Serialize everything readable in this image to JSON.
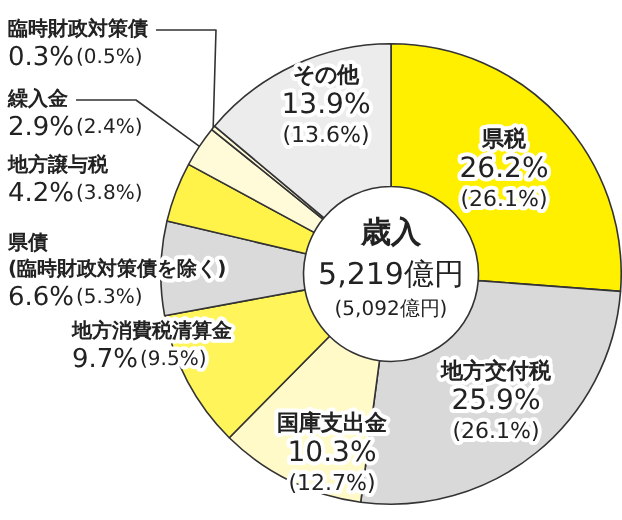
{
  "chart_data": {
    "type": "donut",
    "title": "歳入",
    "annotations": [
      "5,219億円",
      "(5,092億円)"
    ],
    "categories": [
      "県税",
      "地方交付税",
      "国庫支出金",
      "地方消費税清算金",
      "県債\n(臨時財政対策債を除く)",
      "地方譲与税",
      "繰入金",
      "臨時財政対策債",
      "その他"
    ],
    "values": [
      26.2,
      25.9,
      10.3,
      9.7,
      6.6,
      4.2,
      2.9,
      0.3,
      13.9
    ],
    "value_labels": [
      "26.2%(26.1%)",
      "25.9%(26.1%)",
      "10.3%(12.7%)",
      "9.7%(9.5%)",
      "6.6%(5.3%)",
      "4.2%(3.8%)",
      "2.9%(2.4%)",
      "0.3%(0.5%)",
      "13.9%(13.6%)"
    ],
    "colors": [
      "#fff000",
      "#d9d9d9",
      "#fffac8",
      "#fff45a",
      "#dadada",
      "#fff34a",
      "#fffbd8",
      "#fffbd8",
      "#ececec"
    ],
    "legend": false
  }
}
